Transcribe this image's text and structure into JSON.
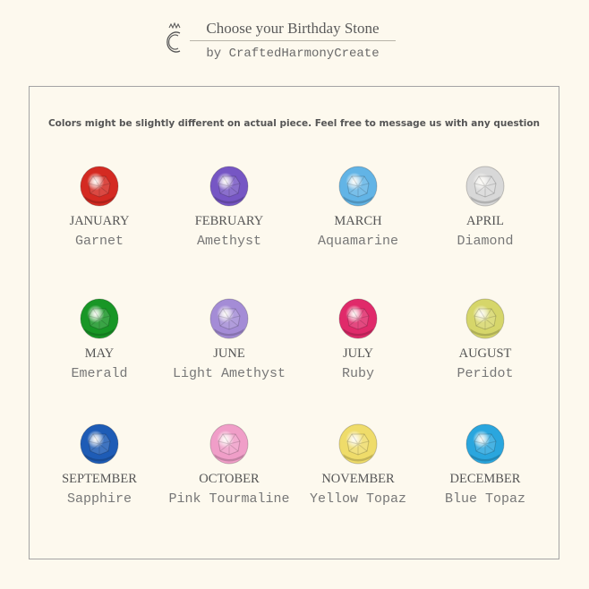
{
  "header": {
    "title": "Choose your Birthday Stone",
    "byline": "by CraftedHarmonyCreate",
    "logo_icon": "crowned-c-logo"
  },
  "note": "Colors might be slightly different on actual piece. Feel free to message us with any question",
  "stones": [
    {
      "month": "JANUARY",
      "name": "Garnet",
      "color": "#d42a22"
    },
    {
      "month": "FEBRUARY",
      "name": "Amethyst",
      "color": "#7656c4"
    },
    {
      "month": "MARCH",
      "name": "Aquamarine",
      "color": "#62b4e6"
    },
    {
      "month": "APRIL",
      "name": "Diamond",
      "color": "#d8d8d8"
    },
    {
      "month": "MAY",
      "name": "Emerald",
      "color": "#189626"
    },
    {
      "month": "JUNE",
      "name": "Light Amethyst",
      "color": "#a48cd6"
    },
    {
      "month": "JULY",
      "name": "Ruby",
      "color": "#e02a6a"
    },
    {
      "month": "AUGUST",
      "name": "Peridot",
      "color": "#d6d66a"
    },
    {
      "month": "SEPTEMBER",
      "name": "Sapphire",
      "color": "#1e5cb6"
    },
    {
      "month": "OCTOBER",
      "name": "Pink Tourmaline",
      "color": "#f09ec8"
    },
    {
      "month": "NOVEMBER",
      "name": "Yellow Topaz",
      "color": "#efdc6a"
    },
    {
      "month": "DECEMBER",
      "name": "Blue Topaz",
      "color": "#2aa6de"
    }
  ]
}
